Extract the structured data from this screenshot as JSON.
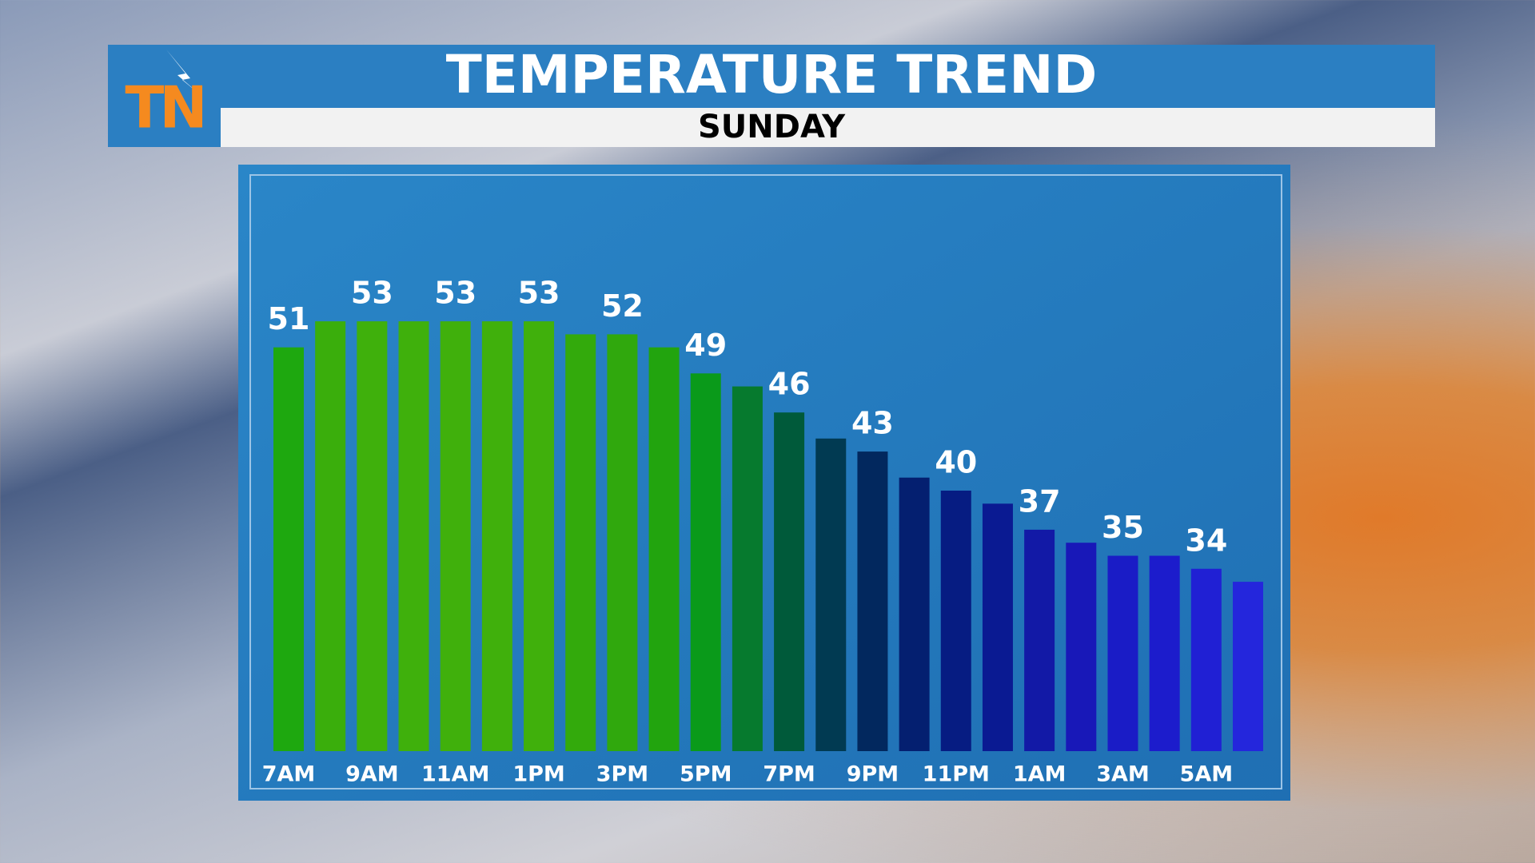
{
  "logo": "TN",
  "chart_data": {
    "type": "bar",
    "title": "TEMPERATURE TREND",
    "subtitle": "SUNDAY",
    "categories": [
      "7AM",
      null,
      "9AM",
      null,
      "11AM",
      null,
      "1PM",
      null,
      "3PM",
      null,
      "5PM",
      null,
      "7PM",
      null,
      "9PM",
      null,
      "11PM",
      null,
      "1AM",
      null,
      "3AM",
      null,
      "5AM",
      null
    ],
    "values": [
      51,
      53,
      53,
      53,
      53,
      53,
      53,
      52,
      52,
      51,
      49,
      48,
      46,
      44,
      43,
      41,
      40,
      39,
      37,
      36,
      35,
      35,
      34,
      33
    ],
    "colors": [
      "#1ea80f",
      "#3aae0c",
      "#3fb00c",
      "#3fb00c",
      "#40b00c",
      "#40b00c",
      "#40b00c",
      "#33aa0c",
      "#30a80d",
      "#22a40e",
      "#0a9a1a",
      "#067a2e",
      "#005a3a",
      "#013a52",
      "#02285e",
      "#041f70",
      "#061c82",
      "#0a1a92",
      "#1219a6",
      "#1818b8",
      "#1a1cc6",
      "#1c1ccc",
      "#2020d4",
      "#2426dc"
    ],
    "ylim": [
      20,
      60
    ]
  }
}
